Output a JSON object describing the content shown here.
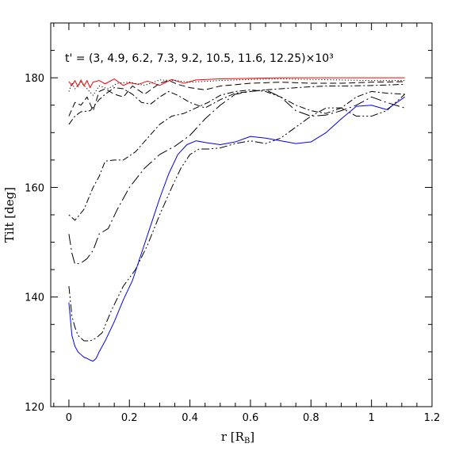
{
  "chart_data": {
    "type": "line",
    "xlabel": "r [R",
    "xlabel_sub": "B",
    "xlabel_close": "]",
    "ylabel": "Tilt [deg]",
    "annotation": "t' = (3, 4.9, 6.2, 7.3, 9.2, 10.5, 11.6, 12.25)×10³",
    "xlim": [
      -0.06,
      1.2
    ],
    "ylim": [
      120,
      190
    ],
    "xticks": [
      0,
      0.2,
      0.4,
      0.6,
      0.8,
      1,
      1.2
    ],
    "xtick_labels": [
      "0",
      "0.2",
      "0.4",
      "0.6",
      "0.8",
      "1",
      "1.2"
    ],
    "yticks": [
      120,
      140,
      160,
      180
    ],
    "ytick_labels": [
      "120",
      "140",
      "160",
      "180"
    ],
    "grid": false,
    "series": [
      {
        "color": "#ff0000",
        "dash": "solid",
        "x": [
          0,
          0.01,
          0.02,
          0.03,
          0.04,
          0.05,
          0.06,
          0.07,
          0.08,
          0.1,
          0.12,
          0.15,
          0.18,
          0.2,
          0.23,
          0.26,
          0.3,
          0.34,
          0.38,
          0.42,
          0.5,
          0.6,
          0.7,
          0.8,
          0.9,
          1.0,
          1.11
        ],
        "y": [
          179.3,
          178.6,
          179.5,
          178.4,
          179.6,
          178.5,
          179.5,
          178.2,
          179.2,
          179.5,
          178.9,
          179.8,
          178.6,
          179.1,
          178.8,
          179.4,
          178.6,
          179.7,
          179.0,
          179.6,
          179.8,
          179.9,
          180.0,
          180.0,
          180.0,
          180.0,
          180.0
        ]
      },
      {
        "color": "#000000",
        "dash": "1.2,2.5",
        "x": [
          0,
          0.01,
          0.02,
          0.04,
          0.06,
          0.08,
          0.1,
          0.13,
          0.16,
          0.2,
          0.25,
          0.3,
          0.35,
          0.4,
          0.5,
          0.6,
          0.7,
          0.8,
          0.9,
          1.0,
          1.11
        ],
        "y": [
          177.5,
          179.0,
          178.0,
          179.2,
          178.0,
          176.8,
          178.5,
          178.0,
          179.0,
          179.2,
          178.6,
          179.6,
          179.5,
          179.2,
          179.5,
          179.7,
          179.8,
          179.7,
          179.6,
          179.5,
          179.5
        ]
      },
      {
        "color": "#000000",
        "dash": "8,4",
        "x": [
          0,
          0.02,
          0.04,
          0.06,
          0.08,
          0.1,
          0.12,
          0.15,
          0.18,
          0.21,
          0.25,
          0.3,
          0.33,
          0.36,
          0.4,
          0.45,
          0.5,
          0.6,
          0.7,
          0.8,
          0.9,
          1.0,
          1.11
        ],
        "y": [
          173.0,
          175.5,
          175.0,
          176.5,
          174.0,
          177.5,
          178.0,
          177.0,
          176.5,
          178.5,
          177.0,
          179.0,
          179.5,
          178.8,
          178.2,
          177.8,
          178.5,
          179.0,
          179.2,
          179.0,
          179.0,
          179.2,
          179.3
        ]
      },
      {
        "color": "#000000",
        "dash": "8,3,2,3",
        "x": [
          0,
          0.02,
          0.04,
          0.07,
          0.1,
          0.12,
          0.15,
          0.18,
          0.21,
          0.24,
          0.27,
          0.3,
          0.33,
          0.36,
          0.4,
          0.45,
          0.5,
          0.55,
          0.6,
          0.65,
          0.7,
          0.78,
          0.85,
          0.92,
          1.0,
          1.11
        ],
        "y": [
          171.5,
          173.0,
          173.8,
          174.0,
          176.0,
          177.0,
          178.2,
          178.0,
          177.0,
          175.5,
          175.2,
          176.5,
          177.5,
          176.8,
          175.5,
          174.5,
          176.0,
          177.2,
          177.5,
          177.8,
          178.0,
          178.3,
          178.5,
          178.5,
          178.6,
          178.8
        ]
      },
      {
        "color": "#000000",
        "dash": "2,3,8,3",
        "x": [
          0,
          0.02,
          0.05,
          0.08,
          0.1,
          0.12,
          0.15,
          0.18,
          0.22,
          0.26,
          0.3,
          0.34,
          0.38,
          0.42,
          0.46,
          0.5,
          0.55,
          0.6,
          0.65,
          0.7,
          0.75,
          0.8,
          0.85,
          0.9,
          0.95,
          1.0,
          1.05,
          1.11
        ],
        "y": [
          155.0,
          154.0,
          156.0,
          160.0,
          162.0,
          164.8,
          165.0,
          165.0,
          166.5,
          169.0,
          171.5,
          173.0,
          173.5,
          174.5,
          175.5,
          176.8,
          177.5,
          177.8,
          177.5,
          176.5,
          175.0,
          174.0,
          173.5,
          174.5,
          176.5,
          177.5,
          177.2,
          177.0
        ]
      },
      {
        "color": "#000000",
        "dash": "14,4,2,4",
        "x": [
          0,
          0.01,
          0.02,
          0.04,
          0.06,
          0.08,
          0.1,
          0.13,
          0.16,
          0.2,
          0.25,
          0.3,
          0.35,
          0.4,
          0.45,
          0.5,
          0.55,
          0.6,
          0.65,
          0.7,
          0.75,
          0.8,
          0.85,
          0.9,
          0.95,
          1.0,
          1.05,
          1.11
        ],
        "y": [
          151.5,
          148.0,
          146.0,
          146.2,
          147.0,
          148.5,
          151.5,
          152.5,
          156.0,
          160.0,
          163.5,
          166.0,
          167.5,
          169.5,
          172.5,
          175.0,
          177.0,
          177.5,
          177.8,
          176.5,
          174.0,
          173.0,
          173.2,
          174.0,
          175.0,
          176.5,
          175.5,
          174.5
        ]
      },
      {
        "color": "#000000",
        "dash": "10,3,2,3,2,3",
        "x": [
          0,
          0.01,
          0.02,
          0.03,
          0.05,
          0.07,
          0.09,
          0.11,
          0.14,
          0.18,
          0.22,
          0.26,
          0.3,
          0.34,
          0.37,
          0.4,
          0.43,
          0.46,
          0.5,
          0.55,
          0.6,
          0.65,
          0.7,
          0.75,
          0.8,
          0.85,
          0.9,
          0.95,
          1.0,
          1.05,
          1.11
        ],
        "y": [
          142.0,
          136.5,
          134.5,
          133.0,
          132.0,
          132.0,
          132.5,
          133.5,
          137.5,
          142.0,
          145.0,
          149.5,
          155.0,
          160.0,
          163.5,
          166.0,
          167.0,
          167.0,
          167.2,
          168.0,
          168.5,
          168.0,
          169.0,
          171.0,
          173.0,
          174.5,
          174.5,
          173.0,
          173.0,
          174.0,
          177.0
        ]
      },
      {
        "color": "#0000ff",
        "dash": "solid",
        "x": [
          0,
          0.01,
          0.02,
          0.03,
          0.04,
          0.05,
          0.06,
          0.07,
          0.08,
          0.09,
          0.1,
          0.12,
          0.15,
          0.18,
          0.21,
          0.24,
          0.27,
          0.3,
          0.33,
          0.36,
          0.39,
          0.42,
          0.45,
          0.5,
          0.55,
          0.6,
          0.65,
          0.7,
          0.75,
          0.8,
          0.85,
          0.9,
          0.95,
          1.0,
          1.05,
          1.11
        ],
        "y": [
          139.0,
          133.0,
          131.0,
          130.0,
          129.5,
          129.0,
          128.8,
          128.5,
          128.3,
          128.8,
          130.0,
          132.0,
          135.5,
          139.5,
          143.0,
          148.0,
          153.0,
          158.0,
          162.5,
          166.0,
          167.8,
          168.5,
          168.2,
          167.8,
          168.3,
          169.3,
          169.0,
          168.5,
          168.0,
          168.3,
          170.0,
          172.5,
          174.8,
          175.0,
          174.2,
          176.5
        ]
      }
    ]
  }
}
